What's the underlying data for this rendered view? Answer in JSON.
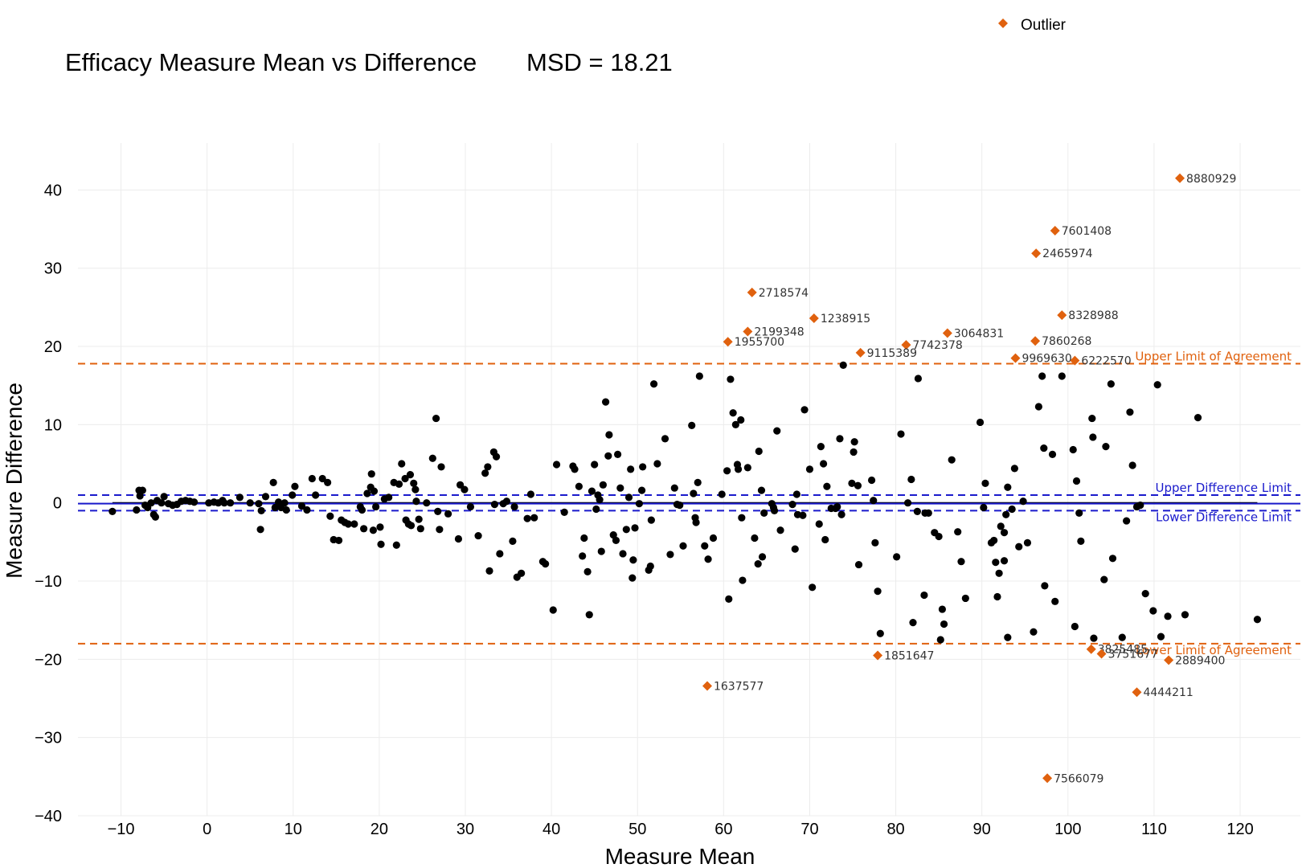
{
  "chart_data": {
    "type": "scatter",
    "title": "Efficacy Measure Mean vs Difference",
    "subtitle": "MSD = 18.21",
    "xlabel": "Measure Mean",
    "ylabel": "Measure Difference",
    "xlim": [
      -15,
      127
    ],
    "ylim": [
      -40,
      46
    ],
    "x_ticks": [
      -10,
      0,
      10,
      20,
      30,
      40,
      50,
      60,
      70,
      80,
      90,
      100,
      110,
      120
    ],
    "y_ticks": [
      -40,
      -30,
      -20,
      -10,
      0,
      10,
      20,
      30,
      40
    ],
    "x_tick_labels": [
      "−10",
      "0",
      "10",
      "20",
      "30",
      "40",
      "50",
      "60",
      "70",
      "80",
      "90",
      "100",
      "110",
      "120"
    ],
    "y_tick_labels": [
      "−40",
      "−30",
      "−20",
      "−10",
      "0",
      "10",
      "20",
      "30",
      "40"
    ],
    "grid": true,
    "legend": {
      "position": "top-right",
      "entries": [
        {
          "name": "Outlier",
          "color": "#e0610e",
          "marker": "diamond"
        }
      ]
    },
    "colors": {
      "points": "#000000",
      "outlier": "#e0610e",
      "loa": "#e0610e",
      "difference_limits": "#1a1acc",
      "mean_line": "#1a1acc",
      "zero_line": "#000000"
    },
    "reference_lines": [
      {
        "name": "Upper Limit of Agreement",
        "y": 17.8,
        "style": "dashed",
        "color": "#e0610e"
      },
      {
        "name": "Lower Limit of Agreement",
        "y": -18.0,
        "style": "dashed",
        "color": "#e0610e"
      },
      {
        "name": "Upper Difference Limit",
        "y": 1.0,
        "style": "dashed",
        "color": "#1a1acc"
      },
      {
        "name": "Lower Difference Limit",
        "y": -1.0,
        "style": "dashed",
        "color": "#1a1acc"
      }
    ],
    "mean_line_y": -0.1,
    "zero_line_x_range": [
      -11,
      122
    ],
    "outliers": [
      {
        "label": "8880929",
        "x": 113.0,
        "y": 41.5
      },
      {
        "label": "7601408",
        "x": 98.5,
        "y": 34.8
      },
      {
        "label": "2465974",
        "x": 96.3,
        "y": 31.9
      },
      {
        "label": "2718574",
        "x": 63.3,
        "y": 26.9
      },
      {
        "label": "1238915",
        "x": 70.5,
        "y": 23.6
      },
      {
        "label": "8328988",
        "x": 99.3,
        "y": 24.0
      },
      {
        "label": "2199348",
        "x": 62.8,
        "y": 21.9
      },
      {
        "label": "3064831",
        "x": 86.0,
        "y": 21.7
      },
      {
        "label": "1955700",
        "x": 60.5,
        "y": 20.6
      },
      {
        "label": "7860268",
        "x": 96.2,
        "y": 20.7
      },
      {
        "label": "7742378",
        "x": 81.2,
        "y": 20.2
      },
      {
        "label": "9115389",
        "x": 75.9,
        "y": 19.2
      },
      {
        "label": "9969630",
        "x": 93.9,
        "y": 18.5
      },
      {
        "label": "6222570",
        "x": 100.8,
        "y": 18.2
      },
      {
        "label": "1851647",
        "x": 77.9,
        "y": -19.5
      },
      {
        "label": "3825485",
        "x": 102.7,
        "y": -18.7
      },
      {
        "label": "3751677",
        "x": 103.9,
        "y": -19.3
      },
      {
        "label": "2889400",
        "x": 111.7,
        "y": -20.1
      },
      {
        "label": "1637577",
        "x": 58.1,
        "y": -23.4
      },
      {
        "label": "4444211",
        "x": 108.0,
        "y": -24.2
      },
      {
        "label": "7566079",
        "x": 97.6,
        "y": -35.2
      }
    ],
    "points": [
      [
        -11.0,
        -1.1
      ],
      [
        -8.2,
        -0.9
      ],
      [
        -7.8,
        0.9
      ],
      [
        -7.9,
        1.6
      ],
      [
        -7.5,
        1.6
      ],
      [
        -7.2,
        -0.3
      ],
      [
        -6.9,
        -0.6
      ],
      [
        -6.5,
        0.0
      ],
      [
        -6.2,
        -1.5
      ],
      [
        -6.0,
        -1.8
      ],
      [
        -5.8,
        0.3
      ],
      [
        -5.3,
        0.0
      ],
      [
        -5.0,
        0.8
      ],
      [
        -4.5,
        -0.1
      ],
      [
        -4.0,
        -0.3
      ],
      [
        -3.5,
        -0.2
      ],
      [
        -3.0,
        0.2
      ],
      [
        -2.5,
        0.3
      ],
      [
        -2.0,
        0.2
      ],
      [
        -1.5,
        0.1
      ],
      [
        0.2,
        0.0
      ],
      [
        0.8,
        0.1
      ],
      [
        1.3,
        0.0
      ],
      [
        1.8,
        0.3
      ],
      [
        2.0,
        0.0
      ],
      [
        2.7,
        0.0
      ],
      [
        3.8,
        0.7
      ],
      [
        5.0,
        0.0
      ],
      [
        6.0,
        -0.1
      ],
      [
        6.2,
        -3.4
      ],
      [
        6.3,
        -1.0
      ],
      [
        6.8,
        0.8
      ],
      [
        7.7,
        2.6
      ],
      [
        7.9,
        -0.6
      ],
      [
        8.3,
        0.1
      ],
      [
        8.6,
        -0.6
      ],
      [
        9.0,
        0.0
      ],
      [
        9.2,
        -0.9
      ],
      [
        9.9,
        1.0
      ],
      [
        10.2,
        2.1
      ],
      [
        11.0,
        -0.4
      ],
      [
        11.6,
        -0.9
      ],
      [
        12.2,
        3.1
      ],
      [
        12.6,
        1.0
      ],
      [
        13.4,
        3.1
      ],
      [
        14.0,
        2.6
      ],
      [
        14.3,
        -1.7
      ],
      [
        14.7,
        -4.7
      ],
      [
        15.3,
        -4.8
      ],
      [
        15.6,
        -2.2
      ],
      [
        16.0,
        -2.5
      ],
      [
        16.4,
        -2.7
      ],
      [
        17.1,
        -2.7
      ],
      [
        17.8,
        -0.5
      ],
      [
        18.0,
        -0.9
      ],
      [
        18.2,
        -3.3
      ],
      [
        18.6,
        1.2
      ],
      [
        19.0,
        2.0
      ],
      [
        19.1,
        3.7
      ],
      [
        19.3,
        -3.5
      ],
      [
        19.4,
        1.5
      ],
      [
        19.6,
        -0.5
      ],
      [
        20.1,
        -3.1
      ],
      [
        20.2,
        -5.3
      ],
      [
        20.6,
        0.5
      ],
      [
        21.1,
        0.7
      ],
      [
        21.7,
        2.6
      ],
      [
        22.0,
        -5.4
      ],
      [
        22.3,
        2.4
      ],
      [
        22.6,
        5.0
      ],
      [
        23.0,
        3.1
      ],
      [
        23.1,
        -2.2
      ],
      [
        23.4,
        -2.7
      ],
      [
        23.6,
        3.6
      ],
      [
        23.7,
        -2.9
      ],
      [
        24.0,
        2.5
      ],
      [
        24.2,
        1.7
      ],
      [
        24.3,
        0.2
      ],
      [
        24.6,
        -2.1
      ],
      [
        24.8,
        -3.3
      ],
      [
        25.5,
        0.0
      ],
      [
        26.2,
        5.7
      ],
      [
        26.6,
        10.8
      ],
      [
        26.8,
        -1.1
      ],
      [
        27.0,
        -3.4
      ],
      [
        27.2,
        4.6
      ],
      [
        28.0,
        -1.4
      ],
      [
        29.2,
        -4.6
      ],
      [
        29.4,
        2.3
      ],
      [
        29.9,
        1.7
      ],
      [
        30.6,
        -0.5
      ],
      [
        31.5,
        -4.2
      ],
      [
        32.3,
        3.8
      ],
      [
        32.6,
        4.6
      ],
      [
        32.8,
        -8.7
      ],
      [
        33.3,
        6.5
      ],
      [
        33.4,
        -0.2
      ],
      [
        33.6,
        5.9
      ],
      [
        34.0,
        -6.5
      ],
      [
        34.4,
        -0.1
      ],
      [
        34.8,
        0.2
      ],
      [
        35.5,
        -4.9
      ],
      [
        35.7,
        -0.5
      ],
      [
        36.0,
        -9.5
      ],
      [
        36.5,
        -9.0
      ],
      [
        37.2,
        -2.0
      ],
      [
        37.6,
        1.1
      ],
      [
        38.0,
        -1.9
      ],
      [
        39.0,
        -7.5
      ],
      [
        39.3,
        -7.8
      ],
      [
        40.2,
        -13.7
      ],
      [
        40.6,
        4.9
      ],
      [
        41.5,
        -1.2
      ],
      [
        42.5,
        4.7
      ],
      [
        42.7,
        4.3
      ],
      [
        43.2,
        2.1
      ],
      [
        43.6,
        -6.8
      ],
      [
        43.8,
        -4.5
      ],
      [
        44.2,
        -8.8
      ],
      [
        44.4,
        -14.3
      ],
      [
        44.7,
        1.5
      ],
      [
        45.0,
        4.9
      ],
      [
        45.2,
        -0.8
      ],
      [
        45.4,
        1.0
      ],
      [
        45.6,
        0.4
      ],
      [
        45.8,
        -6.2
      ],
      [
        46.0,
        2.3
      ],
      [
        46.3,
        12.9
      ],
      [
        46.6,
        6.0
      ],
      [
        46.7,
        8.7
      ],
      [
        47.2,
        -4.1
      ],
      [
        47.5,
        -4.8
      ],
      [
        47.7,
        6.2
      ],
      [
        48.0,
        1.9
      ],
      [
        48.3,
        -6.5
      ],
      [
        48.7,
        -3.4
      ],
      [
        49.0,
        0.7
      ],
      [
        49.2,
        4.3
      ],
      [
        49.4,
        -9.6
      ],
      [
        49.5,
        -7.3
      ],
      [
        49.7,
        -3.2
      ],
      [
        50.2,
        -0.1
      ],
      [
        50.5,
        1.6
      ],
      [
        50.6,
        4.6
      ],
      [
        51.3,
        -8.6
      ],
      [
        51.5,
        -8.1
      ],
      [
        51.6,
        -2.2
      ],
      [
        51.9,
        15.2
      ],
      [
        52.3,
        5.0
      ],
      [
        53.2,
        8.2
      ],
      [
        53.8,
        -6.6
      ],
      [
        54.3,
        1.9
      ],
      [
        54.6,
        -0.2
      ],
      [
        54.9,
        -0.3
      ],
      [
        55.3,
        -5.5
      ],
      [
        56.3,
        9.9
      ],
      [
        56.5,
        1.2
      ],
      [
        56.7,
        -1.9
      ],
      [
        56.8,
        -2.5
      ],
      [
        57.0,
        2.6
      ],
      [
        57.2,
        16.2
      ],
      [
        57.8,
        -5.5
      ],
      [
        58.2,
        -7.2
      ],
      [
        58.8,
        -4.5
      ],
      [
        59.8,
        1.1
      ],
      [
        60.4,
        4.1
      ],
      [
        60.6,
        -12.3
      ],
      [
        60.8,
        15.8
      ],
      [
        61.1,
        11.5
      ],
      [
        61.4,
        10.0
      ],
      [
        61.6,
        4.9
      ],
      [
        61.7,
        4.3
      ],
      [
        62.0,
        10.6
      ],
      [
        62.1,
        -1.9
      ],
      [
        62.2,
        -9.9
      ],
      [
        62.8,
        4.5
      ],
      [
        63.6,
        -4.5
      ],
      [
        64.0,
        -7.8
      ],
      [
        64.1,
        6.6
      ],
      [
        64.4,
        1.6
      ],
      [
        64.5,
        -6.9
      ],
      [
        64.7,
        -1.3
      ],
      [
        65.6,
        -0.1
      ],
      [
        65.8,
        -0.6
      ],
      [
        65.9,
        -1.0
      ],
      [
        66.2,
        9.2
      ],
      [
        66.6,
        -3.5
      ],
      [
        68.0,
        -0.2
      ],
      [
        68.3,
        -5.9
      ],
      [
        68.5,
        1.1
      ],
      [
        68.6,
        -1.5
      ],
      [
        69.2,
        -1.6
      ],
      [
        69.4,
        11.9
      ],
      [
        70.0,
        4.3
      ],
      [
        70.3,
        -10.8
      ],
      [
        71.1,
        -2.7
      ],
      [
        71.3,
        7.2
      ],
      [
        71.6,
        5.0
      ],
      [
        71.8,
        -4.7
      ],
      [
        72.0,
        2.1
      ],
      [
        72.5,
        -0.7
      ],
      [
        73.0,
        -0.7
      ],
      [
        73.2,
        -0.5
      ],
      [
        73.5,
        8.2
      ],
      [
        73.7,
        -1.5
      ],
      [
        73.9,
        17.6
      ],
      [
        74.9,
        2.5
      ],
      [
        75.1,
        6.5
      ],
      [
        75.2,
        7.8
      ],
      [
        75.6,
        2.2
      ],
      [
        75.7,
        -7.9
      ],
      [
        77.2,
        2.9
      ],
      [
        77.4,
        0.3
      ],
      [
        77.6,
        -5.1
      ],
      [
        77.9,
        -11.3
      ],
      [
        78.2,
        -16.7
      ],
      [
        80.1,
        -6.9
      ],
      [
        80.6,
        8.8
      ],
      [
        81.4,
        0.0
      ],
      [
        81.8,
        3.0
      ],
      [
        82.0,
        -15.3
      ],
      [
        82.6,
        15.9
      ],
      [
        82.5,
        -1.1
      ],
      [
        83.3,
        -11.8
      ],
      [
        83.4,
        -1.3
      ],
      [
        83.8,
        -1.3
      ],
      [
        84.5,
        -3.8
      ],
      [
        85.0,
        -4.3
      ],
      [
        85.2,
        -17.5
      ],
      [
        85.4,
        -13.6
      ],
      [
        85.6,
        -15.5
      ],
      [
        86.5,
        5.5
      ],
      [
        87.2,
        -3.7
      ],
      [
        87.6,
        -7.5
      ],
      [
        88.1,
        -12.2
      ],
      [
        89.8,
        10.3
      ],
      [
        90.2,
        -0.6
      ],
      [
        90.4,
        2.5
      ],
      [
        91.1,
        -5.1
      ],
      [
        91.4,
        -4.8
      ],
      [
        91.6,
        -7.6
      ],
      [
        91.8,
        -12.0
      ],
      [
        92.0,
        -9.0
      ],
      [
        92.2,
        -3.0
      ],
      [
        92.6,
        -7.4
      ],
      [
        92.6,
        -3.8
      ],
      [
        92.8,
        -1.5
      ],
      [
        93.0,
        2.0
      ],
      [
        93.0,
        -17.2
      ],
      [
        93.5,
        -0.8
      ],
      [
        93.8,
        4.4
      ],
      [
        94.3,
        -5.6
      ],
      [
        94.8,
        0.2
      ],
      [
        95.3,
        -5.1
      ],
      [
        96.0,
        -16.5
      ],
      [
        96.6,
        12.3
      ],
      [
        97.0,
        16.2
      ],
      [
        97.2,
        7.0
      ],
      [
        97.3,
        -10.6
      ],
      [
        98.2,
        6.2
      ],
      [
        98.5,
        -12.6
      ],
      [
        99.3,
        16.2
      ],
      [
        100.6,
        6.8
      ],
      [
        100.8,
        -15.8
      ],
      [
        101.0,
        2.8
      ],
      [
        101.3,
        -1.3
      ],
      [
        101.5,
        -4.9
      ],
      [
        102.8,
        10.8
      ],
      [
        102.9,
        8.4
      ],
      [
        103.0,
        -17.3
      ],
      [
        104.2,
        -9.8
      ],
      [
        104.4,
        7.2
      ],
      [
        105.0,
        15.2
      ],
      [
        105.2,
        -7.1
      ],
      [
        106.3,
        -17.2
      ],
      [
        106.8,
        -2.3
      ],
      [
        107.2,
        11.6
      ],
      [
        107.5,
        4.8
      ],
      [
        108.0,
        -0.5
      ],
      [
        108.4,
        -0.3
      ],
      [
        109.0,
        -11.6
      ],
      [
        109.9,
        -13.8
      ],
      [
        110.4,
        15.1
      ],
      [
        110.8,
        -17.1
      ],
      [
        111.6,
        -14.5
      ],
      [
        113.6,
        -14.3
      ],
      [
        115.1,
        10.9
      ],
      [
        122.0,
        -14.9
      ]
    ]
  },
  "legend": {
    "outlier_label": "Outlier"
  }
}
